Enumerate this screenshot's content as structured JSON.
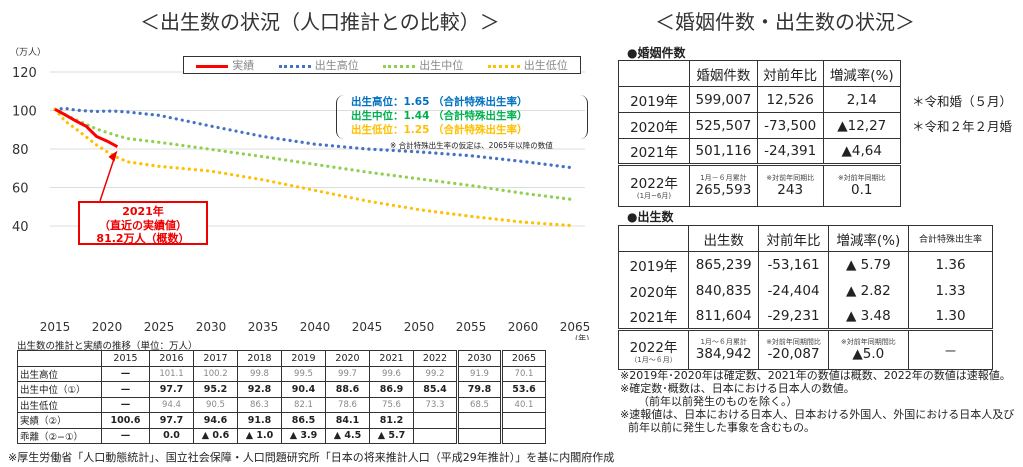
{
  "left_title": "＜出生数の状況（人口推計との比較）＞",
  "right_title": "＜婚姻件数・出生数の状況＞",
  "chart_data": {
    "type": "line",
    "ylabel": "（万人）",
    "ylim": [
      0,
      120
    ],
    "yticks": [
      40,
      60,
      80,
      100,
      120
    ],
    "xlim": [
      2015,
      2065
    ],
    "xticks": [
      2015,
      2020,
      2025,
      2030,
      2035,
      2040,
      2045,
      2050,
      2055,
      2060,
      2065
    ],
    "xunit": "(年)",
    "legend_position": "top",
    "grid": true,
    "series": [
      {
        "name": "実績",
        "color": "#ff0000",
        "style": "solid",
        "x": [
          2015,
          2016,
          2017,
          2018,
          2019,
          2020,
          2021
        ],
        "y": [
          100.6,
          97.7,
          94.6,
          91.8,
          86.5,
          84.1,
          81.2
        ]
      },
      {
        "name": "出生高位",
        "color": "#4472c4",
        "style": "dotted",
        "x": [
          2015,
          2016,
          2017,
          2018,
          2019,
          2020,
          2021,
          2022,
          2025,
          2030,
          2035,
          2040,
          2045,
          2050,
          2055,
          2060,
          2065
        ],
        "y": [
          100.6,
          101.1,
          100.2,
          99.8,
          99.5,
          99.7,
          99.6,
          99.2,
          97.5,
          91.9,
          86.5,
          82.5,
          80,
          78.5,
          76.5,
          73.5,
          70.1
        ]
      },
      {
        "name": "出生中位",
        "color": "#8fd14f",
        "style": "dotted",
        "x": [
          2015,
          2016,
          2017,
          2018,
          2019,
          2020,
          2021,
          2022,
          2025,
          2030,
          2035,
          2040,
          2045,
          2050,
          2055,
          2060,
          2065
        ],
        "y": [
          100.6,
          97.7,
          95.2,
          92.8,
          90.4,
          88.6,
          86.9,
          85.4,
          83.5,
          79.8,
          76,
          72,
          68,
          64.5,
          61,
          57,
          53.6
        ]
      },
      {
        "name": "出生低位",
        "color": "#ffc000",
        "style": "dotted",
        "x": [
          2015,
          2016,
          2017,
          2018,
          2019,
          2020,
          2021,
          2022,
          2025,
          2030,
          2035,
          2040,
          2045,
          2050,
          2055,
          2060,
          2065
        ],
        "y": [
          100.6,
          94.4,
          90.5,
          86.3,
          82.1,
          78.6,
          75.6,
          73.3,
          71,
          68.5,
          64,
          58.5,
          53,
          48.5,
          45,
          42,
          40.1
        ]
      }
    ],
    "rates": [
      {
        "text": "出生高位：1.65 （合計特殊出生率）",
        "color": "#0070c0"
      },
      {
        "text": "出生中位：1.44 （合計特殊出生率）",
        "color": "#00b050"
      },
      {
        "text": "出生低位：1.25 （合計特殊出生率）",
        "color": "#ffc000"
      }
    ],
    "rate_note": "※ 合計特殊出生率の仮定は、2065年以降の数値",
    "callout": [
      "2021年",
      "（直近の実績値）",
      "81.2万人（概数）"
    ]
  },
  "left_table": {
    "caption": "出生数の推計と実績の推移（単位：万人）",
    "years": [
      "2015",
      "2016",
      "2017",
      "2018",
      "2019",
      "2020",
      "2021",
      "2022",
      "2030",
      "2065"
    ],
    "rows": [
      {
        "label": "出生高位",
        "values": [
          "—",
          "101.1",
          "100.2",
          "99.8",
          "99.5",
          "99.7",
          "99.6",
          "99.2",
          "91.9",
          "70.1"
        ]
      },
      {
        "label": "出生中位（①）",
        "values": [
          "—",
          "97.7",
          "95.2",
          "92.8",
          "90.4",
          "88.6",
          "86.9",
          "85.4",
          "79.8",
          "53.6"
        ]
      },
      {
        "label": "出生低位",
        "values": [
          "—",
          "94.4",
          "90.5",
          "86.3",
          "82.1",
          "78.6",
          "75.6",
          "73.3",
          "68.5",
          "40.1"
        ]
      },
      {
        "label": "実績（②）",
        "values": [
          "100.6",
          "97.7",
          "94.6",
          "91.8",
          "86.5",
          "84.1",
          "81.2",
          "",
          "",
          ""
        ]
      },
      {
        "label": "乖離（②−①）",
        "values": [
          "—",
          "0.0",
          "▲ 0.6",
          "▲ 1.0",
          "▲ 3.9",
          "▲ 4.5",
          "▲ 5.7",
          "",
          "",
          ""
        ]
      }
    ]
  },
  "source": "※厚生労働省「人口動態統計」、国立社会保障・人口問題研究所「日本の将来推計人口（平成29年推計）」を基に内閣府作成",
  "marriage": {
    "heading": "●婚姻件数",
    "headers": [
      "",
      "婚姻件数",
      "対前年比",
      "増減率(%)"
    ],
    "rows": [
      [
        "2019年",
        "599,007",
        "12,526",
        "2,14"
      ],
      [
        "2020年",
        "525,507",
        "-73,500",
        "▲12,27"
      ],
      [
        "2021年",
        "501,116",
        "-24,391",
        "▲4,64"
      ]
    ],
    "last": {
      "year": "2022年",
      "period": "(1月~6月)",
      "note1": "1月－６月累計",
      "v1": "265,593",
      "note2": "※対前年同期比",
      "v2": "243",
      "note3": "※対前年同期比",
      "v3": "0.1"
    },
    "side_notes": [
      "＊令和婚（５月）",
      "＊令和２年２月婚"
    ]
  },
  "births": {
    "heading": "●出生数",
    "headers": [
      "",
      "出生数",
      "対前年比",
      "増減率(%)",
      "合計特殊出生率"
    ],
    "rows": [
      [
        "2019年",
        "865,239",
        "-53,161",
        "▲ 5.79",
        "1.36"
      ],
      [
        "2020年",
        "840,835",
        "-24,404",
        "▲ 2.82",
        "1.33"
      ],
      [
        "2021年",
        "811,604",
        "-29,231",
        "▲ 3.48",
        "1.30"
      ]
    ],
    "last": {
      "year": "2022年",
      "period": "（1月～６月）",
      "note1": "1月～６月累計",
      "v1": "384,942",
      "note2": "※対前年同期間比",
      "v2": "-20,087",
      "note3": "※対前年同期間比",
      "v3": "▲5.0",
      "v4": "－"
    },
    "notes": [
      "※2019年･2020年は確定数、2021年の数値は概数、2022年の数値は速報値。",
      "※確定数･概数は、日本における日本人の数値。",
      "（前年以前発生のものを除く。）",
      "※速報値は、日本における日本人、日本おける外国人、外国における日本人及び",
      "前年以前に発生した事象を含むもの。"
    ]
  }
}
